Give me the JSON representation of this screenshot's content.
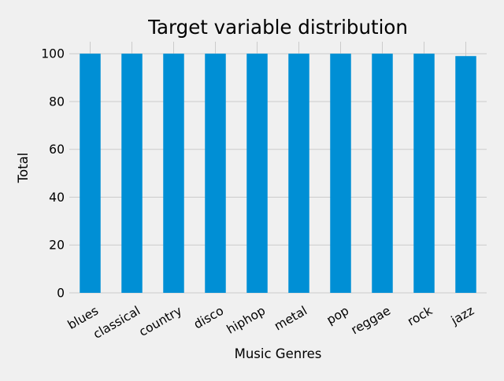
{
  "chart_data": {
    "type": "bar",
    "title": "Target variable distribution",
    "xlabel": "Music Genres",
    "ylabel": "Total",
    "categories": [
      "blues",
      "classical",
      "country",
      "disco",
      "hiphop",
      "metal",
      "pop",
      "reggae",
      "rock",
      "jazz"
    ],
    "values": [
      100,
      100,
      100,
      100,
      100,
      100,
      100,
      100,
      100,
      99
    ],
    "ylim": [
      0,
      105
    ],
    "yticks": [
      0,
      20,
      40,
      60,
      80,
      100
    ],
    "grid": true,
    "legend": "none",
    "x_tick_rotation": 30,
    "colors": {
      "bar": "#008fd5",
      "grid": "#cbcbcb",
      "background": "#f0f0f0",
      "text": "#000000"
    }
  }
}
